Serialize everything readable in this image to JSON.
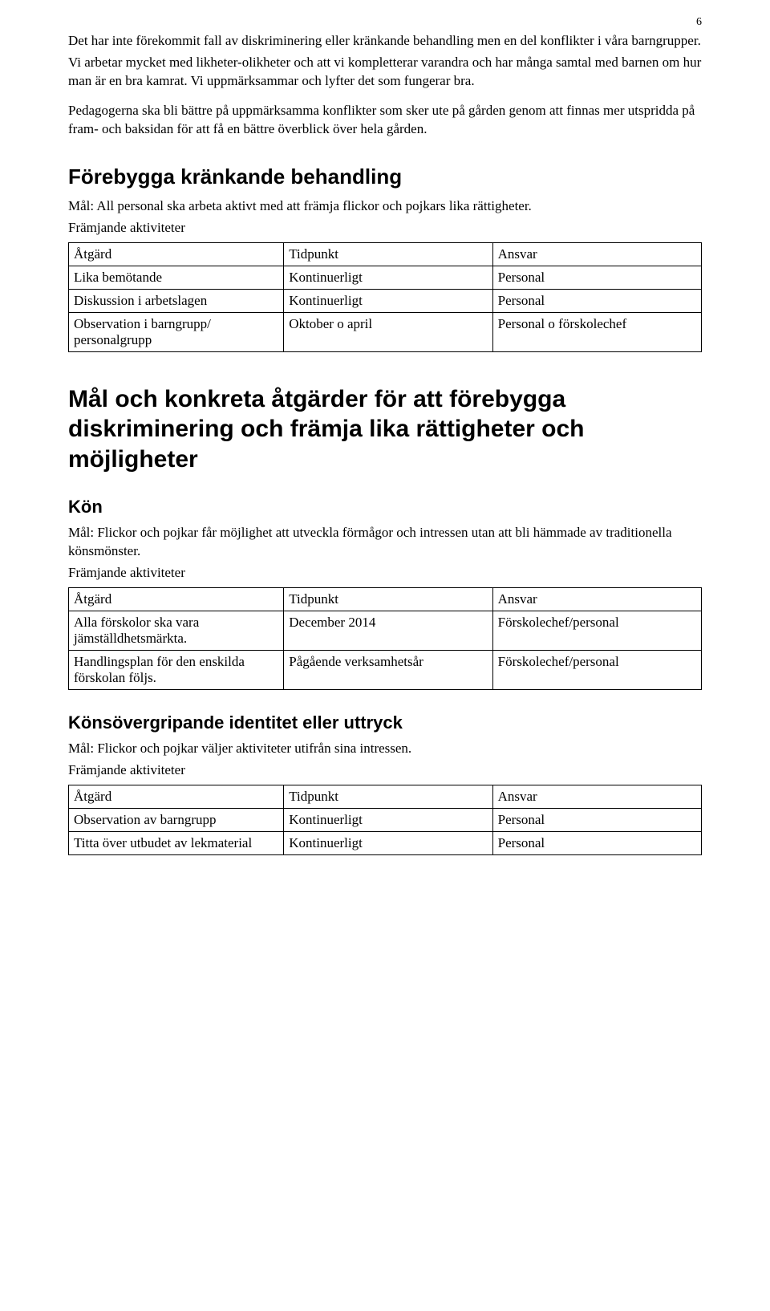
{
  "page_number": "6",
  "intro": {
    "p1": "Det har inte förekommit fall av diskriminering eller kränkande behandling men en del konflikter i våra barngrupper.",
    "p2": "Vi arbetar mycket med likheter-olikheter och att vi kompletterar varandra och har många samtal med barnen om hur man är en bra kamrat. Vi uppmärksammar och lyfter det som fungerar bra.",
    "p3": "Pedagogerna ska bli bättre på uppmärksamma konflikter som sker ute på gården genom att finnas mer utspridda på fram- och baksidan för att få en bättre överblick över hela gården."
  },
  "sec1": {
    "heading": "Förebygga kränkande behandling",
    "mal": "Mål: All personal ska arbeta aktivt med att främja flickor och pojkars lika rättigheter.",
    "sublabel": "Främjande aktiviteter",
    "table": {
      "headers": [
        "Åtgärd",
        "Tidpunkt",
        "Ansvar"
      ],
      "rows": [
        [
          "Lika bemötande",
          "Kontinuerligt",
          "Personal"
        ],
        [
          "Diskussion i arbetslagen",
          "Kontinuerligt",
          "Personal"
        ],
        [
          "Observation i barngrupp/ personalgrupp",
          "Oktober o april",
          "Personal o förskolechef"
        ]
      ]
    }
  },
  "sec2": {
    "heading": "Mål och konkreta åtgärder för att förebygga diskriminering och främja lika rättigheter och möjligheter"
  },
  "sec3": {
    "heading": "Kön",
    "mal": "Mål: Flickor och pojkar får möjlighet att utveckla förmågor och intressen utan att bli hämmade av traditionella könsmönster.",
    "sublabel": "Främjande aktiviteter",
    "table": {
      "headers": [
        "Åtgärd",
        "Tidpunkt",
        "Ansvar"
      ],
      "rows": [
        [
          "Alla förskolor ska vara jämställdhetsmärkta.",
          "December 2014",
          "Förskolechef/personal"
        ],
        [
          "Handlingsplan för den enskilda förskolan följs.",
          "Pågående verksamhetsår",
          "Förskolechef/personal"
        ]
      ]
    }
  },
  "sec4": {
    "heading": "Könsövergripande identitet eller uttryck",
    "mal": "Mål: Flickor och pojkar väljer aktiviteter utifrån sina intressen.",
    "sublabel": "Främjande aktiviteter",
    "table": {
      "headers": [
        "Åtgärd",
        "Tidpunkt",
        "Ansvar"
      ],
      "rows": [
        [
          "Observation av barngrupp",
          "Kontinuerligt",
          "Personal"
        ],
        [
          "Titta över utbudet av lekmaterial",
          "Kontinuerligt",
          "Personal"
        ]
      ]
    }
  }
}
